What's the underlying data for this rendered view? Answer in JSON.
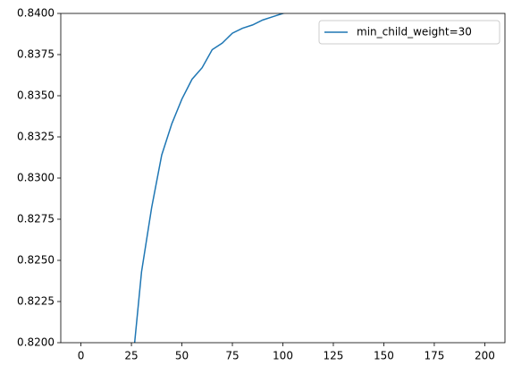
{
  "chart_data": {
    "type": "line",
    "x": [
      25,
      30,
      35,
      40,
      45,
      50,
      55,
      60,
      65,
      70,
      75,
      80,
      85,
      90,
      95,
      100,
      105
    ],
    "series": [
      {
        "name": "min_child_weight=30",
        "color": "#1f77b4",
        "values": [
          0.818,
          0.8243,
          0.8282,
          0.8314,
          0.8333,
          0.8348,
          0.836,
          0.8367,
          0.8378,
          0.8382,
          0.8388,
          0.8391,
          0.8393,
          0.8396,
          0.8398,
          0.84,
          0.8402
        ]
      }
    ],
    "xlim": [
      -10,
      210
    ],
    "xticks": [
      0,
      25,
      50,
      75,
      100,
      125,
      150,
      175,
      200
    ],
    "ylim": [
      0.82,
      0.84
    ],
    "yticks": [
      {
        "value": 0.82,
        "label": "0.8200"
      },
      0.8225,
      {
        "value": 0.825,
        "label": "0.8250"
      },
      0.8275,
      {
        "value": 0.83,
        "label": "0.8300"
      },
      0.8325,
      {
        "value": 0.835,
        "label": "0.8350"
      },
      0.8375,
      {
        "value": 0.84,
        "label": "0.8400"
      }
    ],
    "legend": "upper right"
  }
}
